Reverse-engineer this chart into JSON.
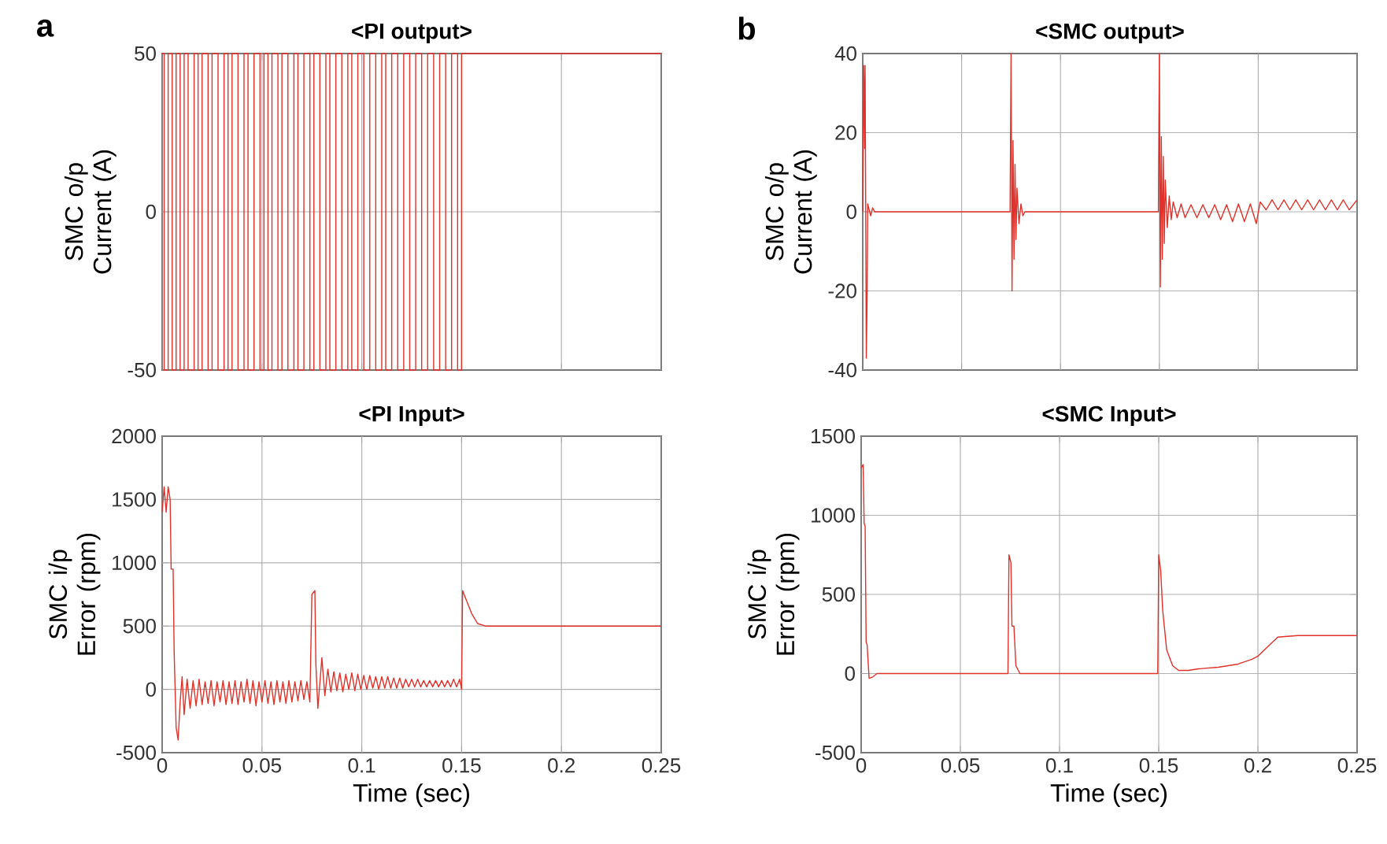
{
  "chart_data": [
    {
      "type": "line",
      "title": "<PI output>",
      "ylabel": "SMC o/p Current (A)",
      "annotations": [
        "a"
      ],
      "xlim": [
        0,
        0.25
      ],
      "ylim": [
        -50,
        50
      ],
      "xticks": [
        0,
        0.05,
        0.1,
        0.15,
        0.2,
        0.25
      ],
      "yticks": [
        -50,
        0,
        50
      ],
      "grid": true,
      "tick_labels": "y",
      "x": [
        0,
        0.001,
        0.001,
        0.003,
        0.003,
        0.005,
        0.005,
        0.007,
        0.007,
        0.009,
        0.009,
        0.011,
        0.011,
        0.013,
        0.013,
        0.016,
        0.016,
        0.018,
        0.018,
        0.02,
        0.02,
        0.023,
        0.023,
        0.025,
        0.025,
        0.028,
        0.028,
        0.031,
        0.031,
        0.033,
        0.033,
        0.035,
        0.035,
        0.038,
        0.038,
        0.041,
        0.041,
        0.043,
        0.043,
        0.046,
        0.046,
        0.049,
        0.049,
        0.051,
        0.051,
        0.053,
        0.053,
        0.055,
        0.055,
        0.058,
        0.058,
        0.06,
        0.06,
        0.063,
        0.063,
        0.066,
        0.066,
        0.068,
        0.068,
        0.071,
        0.071,
        0.074,
        0.074,
        0.076,
        0.076,
        0.079,
        0.079,
        0.082,
        0.082,
        0.084,
        0.084,
        0.087,
        0.087,
        0.09,
        0.09,
        0.093,
        0.093,
        0.095,
        0.095,
        0.098,
        0.098,
        0.101,
        0.101,
        0.104,
        0.104,
        0.107,
        0.107,
        0.11,
        0.11,
        0.112,
        0.112,
        0.115,
        0.115,
        0.118,
        0.118,
        0.121,
        0.121,
        0.124,
        0.124,
        0.127,
        0.127,
        0.13,
        0.13,
        0.133,
        0.133,
        0.136,
        0.136,
        0.139,
        0.139,
        0.142,
        0.142,
        0.145,
        0.145,
        0.148,
        0.148,
        0.15,
        0.15,
        0.25
      ],
      "series": [
        {
          "color": "#e0312a",
          "values": [
            50,
            50,
            -50,
            -50,
            50,
            50,
            -50,
            -50,
            50,
            50,
            -50,
            -50,
            50,
            50,
            -50,
            -50,
            50,
            50,
            -50,
            -50,
            50,
            50,
            -50,
            -50,
            50,
            50,
            -50,
            -50,
            50,
            50,
            -50,
            -50,
            50,
            50,
            -50,
            -50,
            50,
            50,
            -50,
            -50,
            50,
            50,
            -50,
            -50,
            50,
            50,
            -50,
            -50,
            50,
            50,
            -50,
            -50,
            50,
            50,
            -50,
            -50,
            50,
            50,
            -50,
            -50,
            50,
            50,
            -50,
            -50,
            50,
            50,
            -50,
            -50,
            50,
            50,
            -50,
            -50,
            50,
            50,
            -50,
            -50,
            50,
            50,
            -50,
            -50,
            50,
            50,
            -50,
            -50,
            50,
            50,
            -50,
            -50,
            50,
            50,
            -50,
            -50,
            50,
            50,
            -50,
            -50,
            50,
            50,
            -50,
            -50,
            50,
            50,
            -50,
            -50,
            50,
            50,
            -50,
            -50,
            50,
            50,
            -50,
            -50,
            50,
            50,
            -50,
            -50,
            50,
            50
          ]
        }
      ]
    },
    {
      "type": "line",
      "title": "<SMC output>",
      "ylabel": "SMC o/p Current (A)",
      "annotations": [
        "b"
      ],
      "xlim": [
        0,
        0.25
      ],
      "ylim": [
        -40,
        40
      ],
      "xticks": [
        0,
        0.05,
        0.1,
        0.15,
        0.2,
        0.25
      ],
      "yticks": [
        -40,
        -20,
        0,
        20,
        40
      ],
      "grid": true,
      "tick_labels": "y",
      "x": [
        0,
        0.0005,
        0.001,
        0.0012,
        0.0018,
        0.0022,
        0.0025,
        0.004,
        0.005,
        0.006,
        0.0745,
        0.075,
        0.0755,
        0.076,
        0.0765,
        0.077,
        0.0775,
        0.078,
        0.079,
        0.08,
        0.081,
        0.082,
        0.1495,
        0.15,
        0.1505,
        0.151,
        0.1515,
        0.152,
        0.1525,
        0.153,
        0.154,
        0.155,
        0.156,
        0.157,
        0.159,
        0.161,
        0.163,
        0.166,
        0.169,
        0.172,
        0.175,
        0.178,
        0.181,
        0.184,
        0.187,
        0.19,
        0.193,
        0.196,
        0.199,
        0.201,
        0.204,
        0.207,
        0.21,
        0.213,
        0.216,
        0.219,
        0.222,
        0.225,
        0.228,
        0.231,
        0.234,
        0.237,
        0.24,
        0.243,
        0.246,
        0.25
      ],
      "series": [
        {
          "color": "#e0312a",
          "values": [
            0,
            37,
            16,
            37,
            -37,
            -22,
            2,
            -1,
            1,
            0,
            0,
            40,
            -20,
            18,
            -12,
            12,
            -7,
            6,
            -3,
            2,
            -1,
            0,
            0,
            40,
            -19,
            19,
            -12,
            14,
            -8,
            8,
            -4,
            4,
            -2,
            2.5,
            -1.5,
            2,
            -1.5,
            1.8,
            -1.5,
            1.8,
            -1.5,
            1.8,
            -2,
            1.8,
            -2.5,
            2,
            -2.5,
            2,
            -3,
            2.5,
            0.5,
            3,
            0.5,
            3,
            0.5,
            3,
            0.5,
            3,
            0.5,
            3,
            0.5,
            3,
            0.5,
            3,
            0.5,
            3
          ]
        }
      ]
    },
    {
      "type": "line",
      "title": "<PI Input>",
      "xlabel": "Time (sec)",
      "ylabel": "SMC i/p Error (rpm)",
      "xlim": [
        0,
        0.25
      ],
      "ylim": [
        -500,
        2000
      ],
      "xticks": [
        0,
        0.05,
        0.1,
        0.15,
        0.2,
        0.25
      ],
      "yticks": [
        -500,
        0,
        500,
        1000,
        1500,
        2000
      ],
      "grid": true,
      "x": [
        0,
        0.001,
        0.002,
        0.003,
        0.004,
        0.0045,
        0.0055,
        0.006,
        0.007,
        0.008,
        0.009,
        0.01,
        0.011,
        0.0125,
        0.014,
        0.0155,
        0.017,
        0.0185,
        0.02,
        0.0215,
        0.023,
        0.0245,
        0.026,
        0.0275,
        0.029,
        0.0305,
        0.032,
        0.0335,
        0.035,
        0.0365,
        0.038,
        0.0395,
        0.041,
        0.0425,
        0.044,
        0.0455,
        0.047,
        0.0485,
        0.05,
        0.0515,
        0.053,
        0.0545,
        0.056,
        0.0575,
        0.059,
        0.0605,
        0.062,
        0.0635,
        0.065,
        0.0665,
        0.068,
        0.0695,
        0.071,
        0.0725,
        0.074,
        0.075,
        0.0765,
        0.077,
        0.078,
        0.08,
        0.0815,
        0.083,
        0.0845,
        0.086,
        0.0875,
        0.089,
        0.0905,
        0.092,
        0.0935,
        0.095,
        0.0965,
        0.098,
        0.0995,
        0.101,
        0.1025,
        0.104,
        0.1055,
        0.107,
        0.1085,
        0.11,
        0.1115,
        0.113,
        0.1145,
        0.116,
        0.1175,
        0.119,
        0.1205,
        0.122,
        0.1235,
        0.125,
        0.1265,
        0.128,
        0.1295,
        0.131,
        0.1325,
        0.134,
        0.1355,
        0.137,
        0.1385,
        0.14,
        0.1415,
        0.143,
        0.1445,
        0.146,
        0.1475,
        0.149,
        0.15,
        0.1505,
        0.155,
        0.158,
        0.162,
        0.25
      ],
      "series": [
        {
          "color": "#e0312a",
          "values": [
            1400,
            1600,
            1400,
            1600,
            1500,
            950,
            950,
            300,
            -300,
            -400,
            -100,
            100,
            -200,
            80,
            -150,
            70,
            -130,
            80,
            -120,
            60,
            -110,
            70,
            -130,
            60,
            -100,
            70,
            -120,
            60,
            -110,
            70,
            -120,
            60,
            -100,
            80,
            -110,
            70,
            -130,
            60,
            -100,
            70,
            -110,
            60,
            -120,
            70,
            -100,
            60,
            -110,
            70,
            -100,
            60,
            -90,
            70,
            -80,
            60,
            -100,
            750,
            780,
            200,
            -150,
            250,
            -50,
            160,
            -20,
            140,
            -10,
            130,
            -20,
            120,
            0,
            130,
            -10,
            120,
            0,
            110,
            0,
            110,
            10,
            100,
            0,
            100,
            10,
            100,
            10,
            90,
            10,
            90,
            10,
            80,
            20,
            80,
            20,
            80,
            20,
            70,
            20,
            70,
            20,
            70,
            20,
            70,
            20,
            70,
            20,
            80,
            20,
            80,
            0,
            780,
            600,
            520,
            500,
            500
          ]
        }
      ]
    },
    {
      "type": "line",
      "title": "<SMC Input>",
      "xlabel": "Time (sec)",
      "ylabel": "SMC i/p Error (rpm)",
      "xlim": [
        0,
        0.25
      ],
      "ylim": [
        -500,
        1500
      ],
      "xticks": [
        0,
        0.05,
        0.1,
        0.15,
        0.2,
        0.25
      ],
      "yticks": [
        -500,
        0,
        500,
        1000,
        1500
      ],
      "grid": true,
      "x": [
        0,
        0.001,
        0.0015,
        0.002,
        0.0025,
        0.003,
        0.004,
        0.006,
        0.008,
        0.074,
        0.0745,
        0.0755,
        0.076,
        0.077,
        0.078,
        0.08,
        0.1495,
        0.15,
        0.1505,
        0.151,
        0.152,
        0.154,
        0.157,
        0.16,
        0.165,
        0.17,
        0.18,
        0.19,
        0.197,
        0.2,
        0.205,
        0.21,
        0.22,
        0.25
      ],
      "series": [
        {
          "color": "#e0312a",
          "values": [
            1300,
            1320,
            950,
            930,
            200,
            180,
            -30,
            -20,
            0,
            0,
            750,
            700,
            300,
            300,
            50,
            0,
            0,
            750,
            700,
            650,
            400,
            150,
            50,
            20,
            20,
            30,
            40,
            60,
            90,
            110,
            170,
            230,
            240,
            240
          ]
        }
      ]
    }
  ]
}
